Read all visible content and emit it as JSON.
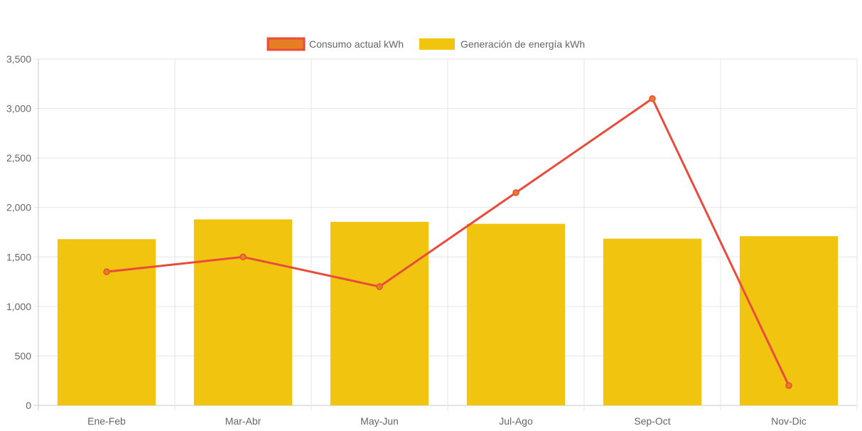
{
  "chart_data": {
    "type": "bar",
    "categories": [
      "Ene-Feb",
      "Mar-Abr",
      "May-Jun",
      "Jul-Ago",
      "Sep-Oct",
      "Nov-Dic"
    ],
    "series": [
      {
        "name": "Consumo actual kWh",
        "type": "line",
        "values": [
          1350,
          1500,
          1200,
          2150,
          3100,
          200
        ]
      },
      {
        "name": "Generación de energía kWh",
        "type": "bar",
        "values": [
          1680,
          1880,
          1855,
          1835,
          1685,
          1710
        ]
      }
    ],
    "ylim": [
      0,
      3500
    ],
    "yticks": [
      0,
      500,
      1000,
      1500,
      2000,
      2500,
      3000,
      3500
    ],
    "ytick_labels": [
      "0",
      "500",
      "1,000",
      "1,500",
      "2,000",
      "2,500",
      "3,000",
      "3,500"
    ],
    "title": "",
    "xlabel": "",
    "ylabel": "",
    "grid": true,
    "legend_position": "top-center"
  },
  "colors": {
    "line": "#e74c3c",
    "line_fill": "#e67e22",
    "bar": "#f1c40f",
    "grid": "#e5e5e5",
    "axis": "#c8c8c8",
    "text": "#666666"
  }
}
